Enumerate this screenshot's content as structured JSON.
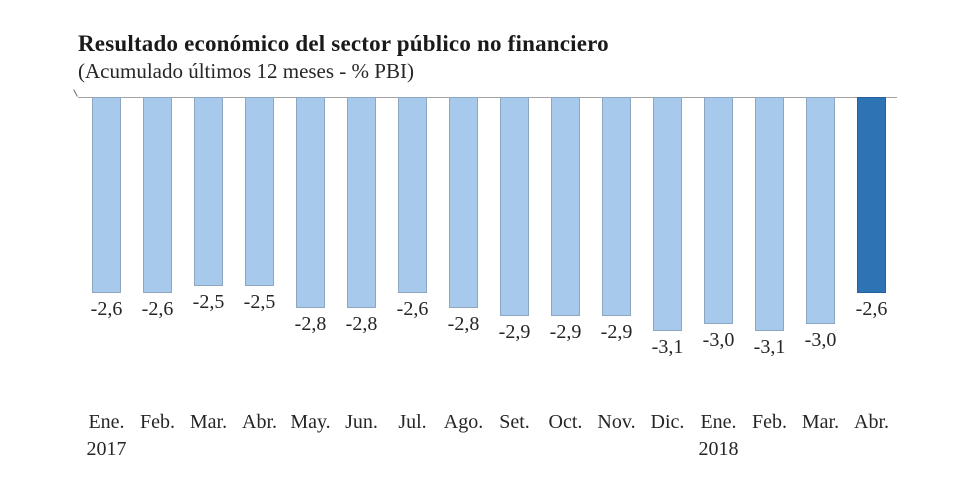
{
  "chart_data": {
    "type": "bar",
    "title": "Resultado económico del sector público no financiero",
    "subtitle": "(Acumulado últimos 12 meses - % PBI)",
    "ylabel": "% PBI",
    "categories": [
      "Ene.",
      "Feb.",
      "Mar.",
      "Abr.",
      "May.",
      "Jun.",
      "Jul.",
      "Ago.",
      "Set.",
      "Oct.",
      "Nov.",
      "Dic.",
      "Ene.",
      "Feb.",
      "Mar.",
      "Abr."
    ],
    "year_markers": [
      {
        "label": "2017",
        "index": 0
      },
      {
        "label": "2018",
        "index": 12
      }
    ],
    "values": [
      -2.6,
      -2.6,
      -2.5,
      -2.5,
      -2.8,
      -2.8,
      -2.6,
      -2.8,
      -2.9,
      -2.9,
      -2.9,
      -3.1,
      -3.0,
      -3.1,
      -3.0,
      -2.6
    ],
    "value_labels": [
      "-2,6",
      "-2,6",
      "-2,5",
      "-2,5",
      "-2,8",
      "-2,8",
      "-2,6",
      "-2,8",
      "-2,9",
      "-2,9",
      "-2,9",
      "-3,1",
      "-3,0",
      "-3,1",
      "-3,0",
      "-2,6"
    ],
    "highlight_index": 15,
    "ylim": [
      -3.5,
      0
    ],
    "baseline": 0,
    "grid": false,
    "legend": false,
    "colors": {
      "bar_fill": "#a6c9ec",
      "bar_border": "#8fa6c0",
      "highlight_fill": "#2e74b5",
      "highlight_border": "#24619e",
      "axis": "#a3a3a3",
      "text": "#262626"
    }
  }
}
